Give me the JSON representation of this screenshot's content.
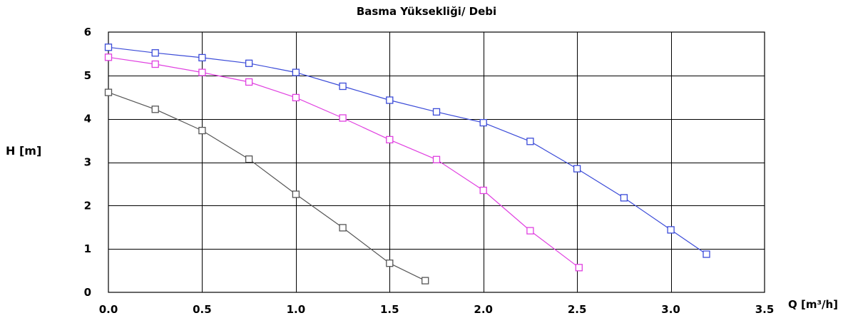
{
  "chart_data": {
    "type": "line",
    "title": "Basma Yüksekliği/ Debi",
    "xlabel": "Q [m³/h]",
    "ylabel": "H [m]",
    "xlim": [
      0,
      3.5
    ],
    "ylim": [
      0,
      6
    ],
    "x_ticks": [
      "0.0",
      "0.5",
      "1.0",
      "1.5",
      "2.0",
      "2.5",
      "3.0",
      "3.5"
    ],
    "y_ticks": [
      "0",
      "1",
      "2",
      "3",
      "4",
      "5",
      "6"
    ],
    "x_grid_step": 0.5,
    "y_grid_step": 1,
    "grid": true,
    "marker": "square",
    "series": [
      {
        "color": "#3b4bd8",
        "points": [
          [
            0.0,
            5.65
          ],
          [
            0.25,
            5.52
          ],
          [
            0.5,
            5.41
          ],
          [
            0.75,
            5.28
          ],
          [
            1.0,
            5.07
          ],
          [
            1.25,
            4.75
          ],
          [
            1.5,
            4.43
          ],
          [
            1.75,
            4.16
          ],
          [
            2.0,
            3.91
          ],
          [
            2.25,
            3.48
          ],
          [
            2.5,
            2.85
          ],
          [
            2.75,
            2.18
          ],
          [
            3.0,
            1.44
          ],
          [
            3.19,
            0.88
          ]
        ]
      },
      {
        "color": "#e040e0",
        "points": [
          [
            0.0,
            5.42
          ],
          [
            0.25,
            5.26
          ],
          [
            0.5,
            5.07
          ],
          [
            0.75,
            4.85
          ],
          [
            1.0,
            4.49
          ],
          [
            1.25,
            4.02
          ],
          [
            1.5,
            3.52
          ],
          [
            1.75,
            3.06
          ],
          [
            2.0,
            2.35
          ],
          [
            2.25,
            1.42
          ],
          [
            2.51,
            0.57
          ]
        ]
      },
      {
        "color": "#555555",
        "points": [
          [
            0.0,
            4.61
          ],
          [
            0.25,
            4.22
          ],
          [
            0.5,
            3.73
          ],
          [
            0.75,
            3.07
          ],
          [
            1.0,
            2.26
          ],
          [
            1.25,
            1.49
          ],
          [
            1.5,
            0.67
          ],
          [
            1.69,
            0.27
          ]
        ]
      }
    ]
  }
}
